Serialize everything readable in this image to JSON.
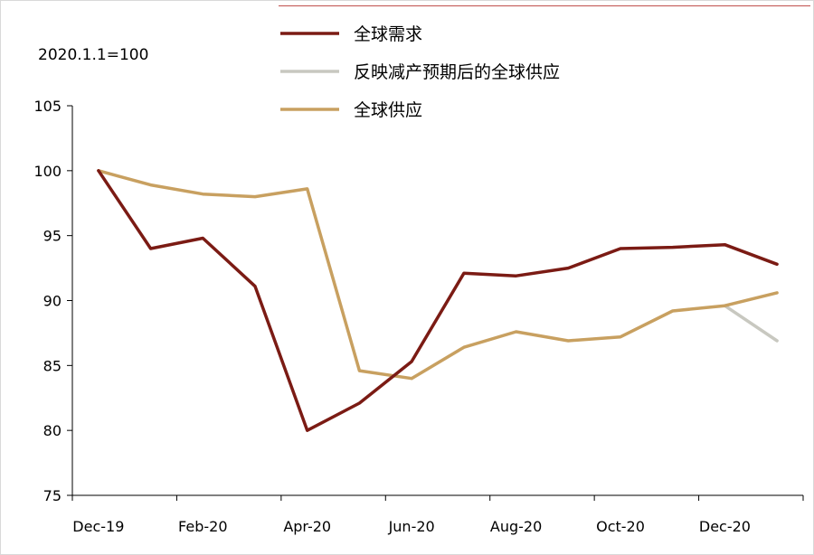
{
  "chart_data": {
    "type": "line",
    "title": "",
    "xlabel": "",
    "ylabel": "",
    "base_note": "2020.1.1=100",
    "ylim": [
      75,
      105
    ],
    "y_ticks": [
      75,
      80,
      85,
      90,
      95,
      100,
      105
    ],
    "categories": [
      "Dec-19",
      "Jan-20",
      "Feb-20",
      "Mar-20",
      "Apr-20",
      "May-20",
      "Jun-20",
      "Jul-20",
      "Aug-20",
      "Sep-20",
      "Oct-20",
      "Nov-20",
      "Dec-20",
      "Jan-21"
    ],
    "x_tick_labels": [
      "Dec-19",
      "Feb-20",
      "Apr-20",
      "Jun-20",
      "Aug-20",
      "Oct-20",
      "Dec-20"
    ],
    "legend_position": "top-right",
    "grid": false,
    "series": [
      {
        "name": "全球需求",
        "color": "#7b1b14",
        "values": [
          100,
          94.0,
          94.8,
          91.1,
          80.0,
          82.1,
          85.3,
          92.1,
          91.9,
          92.5,
          94.0,
          94.1,
          94.3,
          92.8
        ]
      },
      {
        "name": "反映减产预期后的全球供应",
        "color": "#c8c8c0",
        "values": [
          null,
          null,
          null,
          null,
          null,
          null,
          null,
          null,
          null,
          null,
          null,
          null,
          89.6,
          86.9
        ]
      },
      {
        "name": "全球供应",
        "color": "#c8a060",
        "values": [
          100,
          98.9,
          98.2,
          98.0,
          98.6,
          84.6,
          84.0,
          86.4,
          87.6,
          86.9,
          87.2,
          89.2,
          89.6,
          90.6
        ]
      }
    ]
  }
}
